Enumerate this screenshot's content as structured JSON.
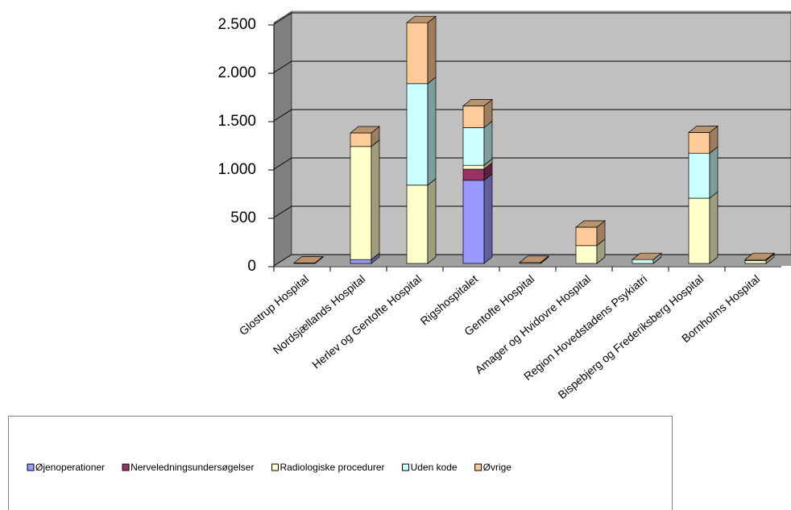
{
  "chart_data": {
    "type": "bar3d-stacked",
    "categories": [
      "Glostrup Hospital",
      "Nordsjællands Hospital",
      "Herlev og Gentofte Hospital",
      "Rigshospitalet",
      "Gentofte Hospital",
      "Amager og Hvidovre Hospital",
      "Region Hovedstadens Psykiatri",
      "Bispebjerg og Frederiksberg Hospital",
      "Bornholms Hospital"
    ],
    "series": [
      {
        "name": "Øjenoperationer",
        "color": "#9999ff",
        "values": [
          0,
          40,
          0,
          860,
          0,
          0,
          0,
          0,
          0
        ]
      },
      {
        "name": "Nerveledningsundersøgelser",
        "color": "#993366",
        "values": [
          0,
          0,
          0,
          115,
          0,
          0,
          0,
          0,
          0
        ]
      },
      {
        "name": "Radiologiske procedurer",
        "color": "#ffffcc",
        "values": [
          0,
          1170,
          810,
          40,
          0,
          185,
          0,
          675,
          30
        ]
      },
      {
        "name": "Uden kode",
        "color": "#ccffff",
        "values": [
          0,
          0,
          1050,
          390,
          0,
          0,
          40,
          465,
          0
        ]
      },
      {
        "name": "Øvrige",
        "color": "#ffcc99",
        "values": [
          5,
          140,
          630,
          225,
          10,
          190,
          0,
          215,
          10
        ]
      }
    ],
    "ylim": [
      0,
      2500
    ],
    "yticks": [
      0,
      500,
      {
        "value": 1000,
        "label": "1.000"
      },
      {
        "value": 1500,
        "label": "1.500"
      },
      {
        "value": 2000,
        "label": "2.000"
      },
      {
        "value": 2500,
        "label": "2.500"
      }
    ],
    "grid": true,
    "legend": "bottom"
  }
}
